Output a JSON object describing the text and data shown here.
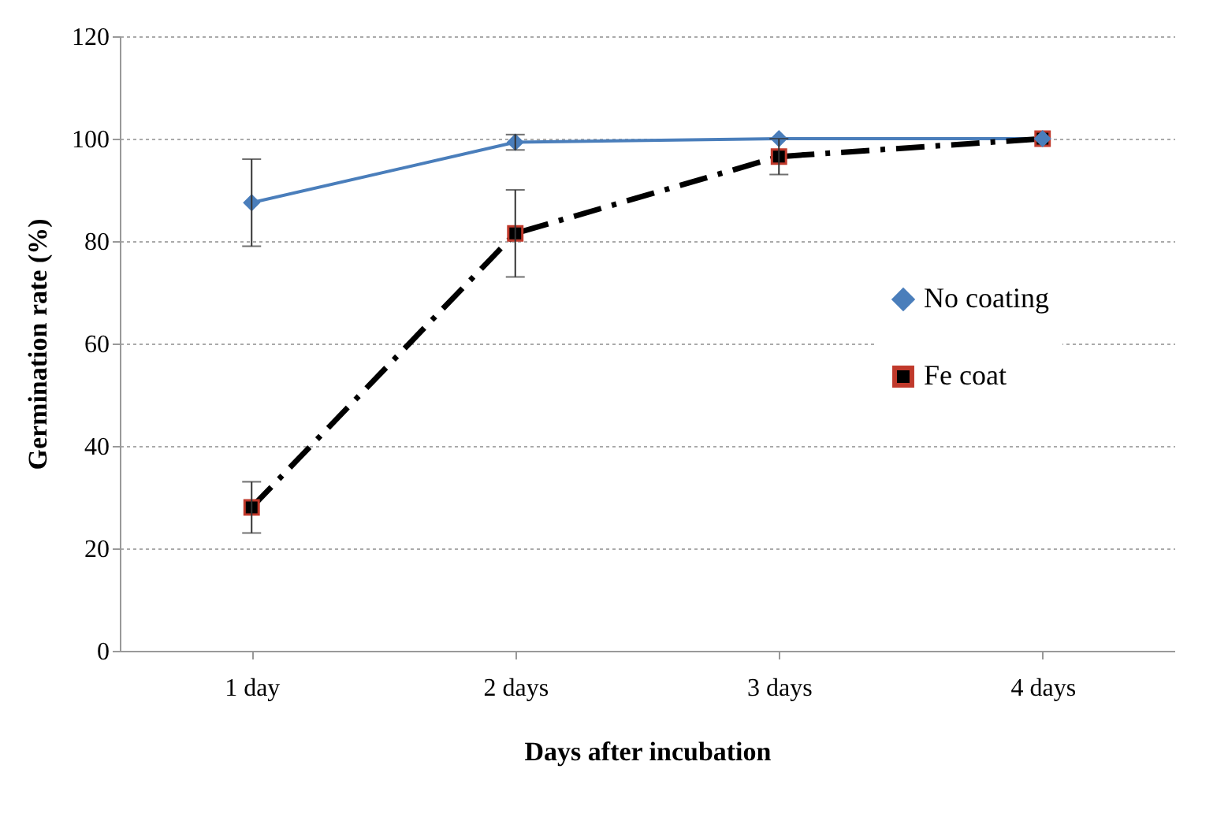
{
  "chart_data": {
    "type": "line",
    "xlabel": "Days after incubation",
    "ylabel": "Germination rate (%)",
    "categories": [
      "1 day",
      "2 days",
      "3 days",
      "4 days"
    ],
    "series": [
      {
        "name": "No coating",
        "color": "#4a7ebb",
        "values": [
          87.5,
          99.3,
          100,
          100
        ],
        "errors": [
          8.5,
          1.5,
          null,
          null
        ],
        "marker": "diamond",
        "line_style": "solid"
      },
      {
        "name": "Fe coat",
        "color": "#000000",
        "values": [
          28,
          81.5,
          96.5,
          100
        ],
        "errors": [
          5,
          8.5,
          3.5,
          null
        ],
        "marker": "square",
        "line_style": "dashed"
      }
    ],
    "ylim": [
      0,
      120
    ],
    "yticks": [
      0,
      20,
      40,
      60,
      80,
      100,
      120
    ],
    "grid": "y",
    "legend": "right"
  }
}
